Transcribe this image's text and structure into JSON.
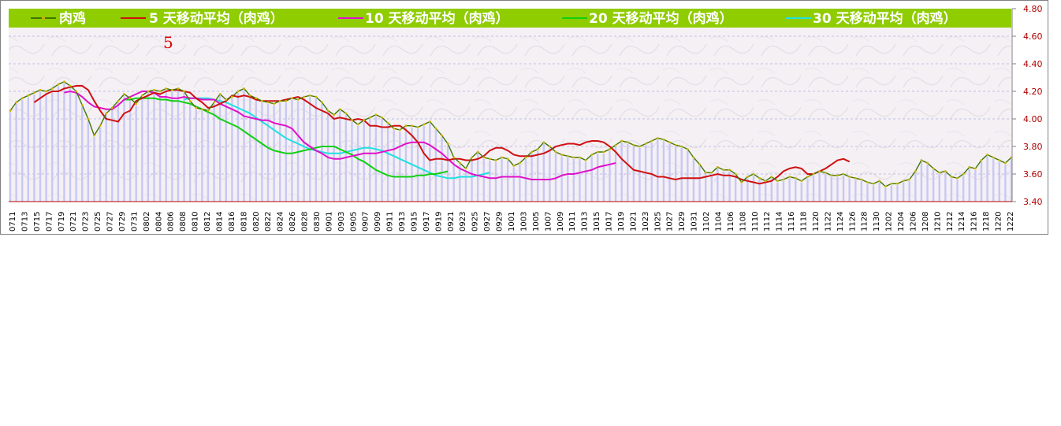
{
  "chart_data": {
    "type": "line",
    "title": "",
    "annotation": "5",
    "y_tick_labels": [
      "4.80",
      "4.60",
      "4.40",
      "4.20",
      "4.00",
      "3.80",
      "3.60",
      "3.40"
    ],
    "ylim": [
      3.4,
      4.8
    ],
    "x_tick_labels": [
      "0711",
      "0713",
      "0715",
      "0717",
      "0719",
      "0721",
      "0723",
      "0725",
      "0727",
      "0729",
      "0731",
      "0802",
      "0804",
      "0806",
      "0808",
      "0810",
      "0812",
      "0814",
      "0816",
      "0818",
      "0820",
      "0822",
      "0824",
      "0826",
      "0828",
      "0830",
      "0901",
      "0903",
      "0905",
      "0907",
      "0909",
      "0911",
      "0913",
      "0915",
      "0917",
      "0919",
      "0921",
      "0923",
      "0925",
      "0927",
      "0929",
      "1001",
      "1003",
      "1005",
      "1007",
      "1009",
      "1011",
      "1013",
      "1015",
      "1017",
      "1019",
      "1021",
      "1023",
      "1025",
      "1027",
      "1029",
      "1031",
      "1102",
      "1104",
      "1106",
      "1108",
      "1110",
      "1112",
      "1114",
      "1116",
      "1118",
      "1120",
      "1122",
      "1124",
      "1126",
      "1128",
      "1130",
      "1202",
      "1204",
      "1206",
      "1208",
      "1210",
      "1212",
      "1214",
      "1216",
      "1218",
      "1220",
      "1222"
    ],
    "grid": "dashed horizontal",
    "legend_placement": "top",
    "legend_background": "#8fcc00",
    "bar_color": "#c8c8f4",
    "background": "#f4f0f4",
    "series": [
      {
        "name": "肉鸡",
        "color": "#3c7800",
        "marker_color": "#d0b000",
        "values": [
          4.06,
          4.12,
          4.15,
          4.17,
          4.19,
          4.21,
          4.2,
          4.22,
          4.25,
          4.27,
          4.24,
          4.2,
          4.1,
          4.0,
          3.88,
          3.95,
          4.04,
          4.08,
          4.13,
          4.18,
          4.15,
          4.11,
          4.17,
          4.2,
          4.21,
          4.2,
          4.22,
          4.21,
          4.22,
          4.2,
          4.13,
          4.08,
          4.07,
          4.06,
          4.12,
          4.18,
          4.14,
          4.16,
          4.2,
          4.22,
          4.17,
          4.15,
          4.13,
          4.12,
          4.11,
          4.13,
          4.13,
          4.15,
          4.14,
          4.16,
          4.17,
          4.16,
          4.12,
          4.06,
          4.03,
          4.07,
          4.04,
          3.99,
          3.96,
          3.99,
          4.01,
          4.03,
          4.01,
          3.97,
          3.93,
          3.92,
          3.95,
          3.95,
          3.94,
          3.96,
          3.98,
          3.93,
          3.88,
          3.82,
          3.72,
          3.68,
          3.64,
          3.72,
          3.76,
          3.72,
          3.71,
          3.7,
          3.72,
          3.71,
          3.66,
          3.68,
          3.72,
          3.76,
          3.78,
          3.83,
          3.8,
          3.76,
          3.74,
          3.73,
          3.72,
          3.72,
          3.7,
          3.74,
          3.76,
          3.76,
          3.78,
          3.81,
          3.84,
          3.83,
          3.81,
          3.8,
          3.82,
          3.84,
          3.86,
          3.85,
          3.83,
          3.81,
          3.8,
          3.78,
          3.72,
          3.67,
          3.61,
          3.61,
          3.65,
          3.63,
          3.63,
          3.6,
          3.54,
          3.58,
          3.6,
          3.57,
          3.55,
          3.58,
          3.55,
          3.56,
          3.58,
          3.57,
          3.55,
          3.58,
          3.6,
          3.62,
          3.61,
          3.59,
          3.59,
          3.6,
          3.58,
          3.57,
          3.56,
          3.54,
          3.53,
          3.55,
          3.51,
          3.53,
          3.53,
          3.55,
          3.56,
          3.62,
          3.7,
          3.68,
          3.64,
          3.61,
          3.62,
          3.58,
          3.57,
          3.6,
          3.65,
          3.64,
          3.7,
          3.74,
          3.72,
          3.7,
          3.68,
          3.72
        ]
      },
      {
        "name": "5 天移动平均（肉鸡）",
        "color": "#d01010",
        "start_index": 4,
        "values": [
          4.12,
          4.15,
          4.18,
          4.2,
          4.2,
          4.22,
          4.23,
          4.24,
          4.24,
          4.21,
          4.13,
          4.06,
          4.0,
          3.99,
          3.98,
          4.04,
          4.06,
          4.13,
          4.15,
          4.17,
          4.19,
          4.18,
          4.2,
          4.21,
          4.21,
          4.2,
          4.19,
          4.15,
          4.12,
          4.08,
          4.09,
          4.11,
          4.13,
          4.17,
          4.16,
          4.17,
          4.16,
          4.14,
          4.13,
          4.13,
          4.13,
          4.13,
          4.14,
          4.15,
          4.16,
          4.14,
          4.11,
          4.08,
          4.06,
          4.04,
          4.0,
          4.01,
          4.0,
          3.99,
          4.0,
          3.99,
          3.95,
          3.95,
          3.94,
          3.94,
          3.95,
          3.95,
          3.92,
          3.88,
          3.83,
          3.75,
          3.7,
          3.71,
          3.71,
          3.7,
          3.71,
          3.71,
          3.7,
          3.7,
          3.71,
          3.73,
          3.77,
          3.79,
          3.79,
          3.77,
          3.74,
          3.73,
          3.73,
          3.73,
          3.74,
          3.75,
          3.77,
          3.8,
          3.81,
          3.82,
          3.82,
          3.81,
          3.83,
          3.84,
          3.84,
          3.83,
          3.8,
          3.76,
          3.71,
          3.67,
          3.63,
          3.62,
          3.61,
          3.6,
          3.58,
          3.58,
          3.57,
          3.56,
          3.57,
          3.57,
          3.57,
          3.57,
          3.58,
          3.59,
          3.6,
          3.59,
          3.59,
          3.58,
          3.56,
          3.55,
          3.54,
          3.53,
          3.54,
          3.55,
          3.58,
          3.62,
          3.64,
          3.65,
          3.64,
          3.6,
          3.6,
          3.62,
          3.64,
          3.67,
          3.7,
          3.71,
          3.69
        ]
      },
      {
        "name": "10 天移动平均（肉鸡）",
        "color": "#e010c8",
        "start_index": 9,
        "values": [
          4.19,
          4.2,
          4.19,
          4.16,
          4.12,
          4.09,
          4.08,
          4.07,
          4.07,
          4.1,
          4.14,
          4.16,
          4.18,
          4.2,
          4.2,
          4.19,
          4.16,
          4.16,
          4.15,
          4.15,
          4.16,
          4.15,
          4.15,
          4.14,
          4.14,
          4.14,
          4.11,
          4.09,
          4.07,
          4.05,
          4.02,
          4.01,
          4.0,
          3.99,
          3.99,
          3.97,
          3.96,
          3.95,
          3.93,
          3.88,
          3.83,
          3.8,
          3.77,
          3.75,
          3.72,
          3.71,
          3.71,
          3.72,
          3.73,
          3.74,
          3.75,
          3.75,
          3.75,
          3.76,
          3.77,
          3.78,
          3.8,
          3.82,
          3.83,
          3.83,
          3.83,
          3.81,
          3.78,
          3.75,
          3.71,
          3.67,
          3.64,
          3.62,
          3.6,
          3.59,
          3.58,
          3.57,
          3.57,
          3.58,
          3.58,
          3.58,
          3.58,
          3.57,
          3.56,
          3.56,
          3.56,
          3.56,
          3.57,
          3.59,
          3.6,
          3.6,
          3.61,
          3.62,
          3.63,
          3.65,
          3.66,
          3.67,
          3.68
        ]
      },
      {
        "name": "20 天移动平均（肉鸡）",
        "color": "#10d010",
        "start_index": 19,
        "values": [
          4.14,
          4.14,
          4.15,
          4.15,
          4.15,
          4.15,
          4.14,
          4.14,
          4.13,
          4.13,
          4.12,
          4.11,
          4.09,
          4.07,
          4.05,
          4.03,
          4.0,
          3.98,
          3.96,
          3.94,
          3.91,
          3.88,
          3.85,
          3.82,
          3.79,
          3.77,
          3.76,
          3.75,
          3.75,
          3.76,
          3.77,
          3.78,
          3.79,
          3.8,
          3.8,
          3.8,
          3.78,
          3.76,
          3.74,
          3.71,
          3.69,
          3.66,
          3.63,
          3.61,
          3.59,
          3.58,
          3.58,
          3.58,
          3.58,
          3.59,
          3.59,
          3.6,
          3.6,
          3.61,
          3.62
        ]
      },
      {
        "name": "30 天移动平均（肉鸡）",
        "color": "#20e0e0",
        "start_index": 29,
        "values": [
          4.14,
          4.15,
          4.15,
          4.15,
          4.15,
          4.14,
          4.13,
          4.12,
          4.1,
          4.08,
          4.06,
          4.04,
          4.01,
          3.98,
          3.95,
          3.92,
          3.89,
          3.86,
          3.84,
          3.82,
          3.8,
          3.78,
          3.77,
          3.76,
          3.75,
          3.75,
          3.75,
          3.76,
          3.77,
          3.78,
          3.79,
          3.79,
          3.78,
          3.77,
          3.75,
          3.73,
          3.71,
          3.69,
          3.67,
          3.65,
          3.63,
          3.61,
          3.59,
          3.58,
          3.57,
          3.57,
          3.58,
          3.58,
          3.58,
          3.59,
          3.6,
          3.61
        ]
      }
    ]
  }
}
